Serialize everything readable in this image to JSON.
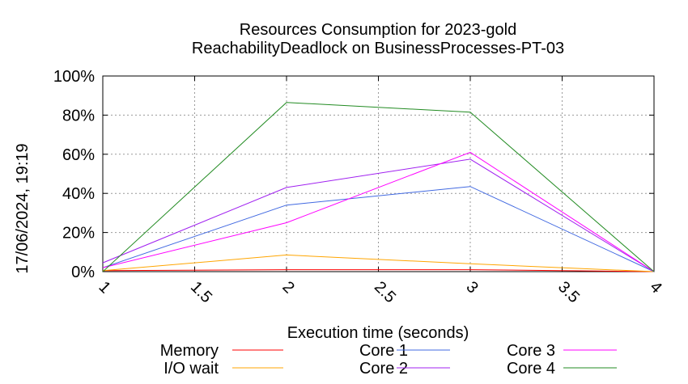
{
  "chart_data": {
    "type": "line",
    "title_line1": "Resources Consumption for 2023-gold",
    "title_line2": "ReachabilityDeadlock on BusinessProcesses-PT-03",
    "xlabel": "Execution time (seconds)",
    "ylabel": "",
    "side_label": "17/06/2024, 19:19",
    "xlim": [
      1,
      4
    ],
    "ylim": [
      0,
      100
    ],
    "x_ticks": [
      "1",
      "1.5",
      "2",
      "2.5",
      "3",
      "3.5",
      "4"
    ],
    "x_tick_values": [
      1,
      1.5,
      2,
      2.5,
      3,
      3.5,
      4
    ],
    "y_ticks": [
      "0%",
      "20%",
      "40%",
      "60%",
      "80%",
      "100%"
    ],
    "y_tick_values": [
      0,
      20,
      40,
      60,
      80,
      100
    ],
    "grid": true,
    "legend_position": "bottom",
    "x": [
      1,
      2,
      3,
      4
    ],
    "series": [
      {
        "name": "Memory",
        "color": "#ff0000",
        "values": [
          0.5,
          1,
          1,
          0
        ]
      },
      {
        "name": "I/O wait",
        "color": "#ffa500",
        "values": [
          0.5,
          8.5,
          4,
          0
        ]
      },
      {
        "name": "Core 1",
        "color": "#4169e1",
        "values": [
          2,
          34,
          43.5,
          0
        ]
      },
      {
        "name": "Core 2",
        "color": "#a020f0",
        "values": [
          4.5,
          43,
          57.5,
          0
        ]
      },
      {
        "name": "Core 3",
        "color": "#ff00ff",
        "values": [
          2,
          25,
          61,
          0
        ]
      },
      {
        "name": "Core 4",
        "color": "#228b22",
        "values": [
          0,
          86.5,
          81.5,
          0
        ]
      }
    ]
  }
}
